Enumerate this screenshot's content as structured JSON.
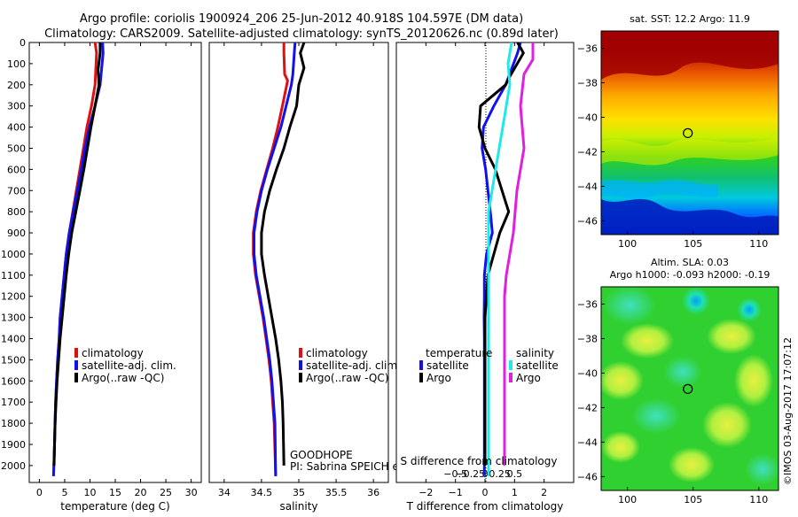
{
  "header": {
    "title": "Argo profile: coriolis 1900924_206 25-Jun-2012 40.918S 104.597E (DM data)",
    "subtitle": "Climatology: CARS2009. Satellite-adjusted climatology: synTS_20120626.nc (0.89d later)"
  },
  "right_header": {
    "sst_label": "sat. SST: 12.2 Argo: 11.9",
    "sla_line1": "Altim. SLA: 0.03",
    "sla_line2": "Argo h1000: -0.093 h2000: -0.19"
  },
  "annotations": {
    "goodhope": "GOODHOPE",
    "pi": "PI: Sabrina SPEICH et Michel ARHAN",
    "credit": "©IMOS 03-Aug-2017 17:07:12",
    "s_diff_label": "S difference from climatology"
  },
  "legend": {
    "climatology": "climatology",
    "satellite_adj": "satellite-adj. clim.",
    "argo_raw": "Argo(..raw -QC)",
    "temperature": "temperature",
    "salinity": "salinity",
    "satellite": "satellite",
    "argo": "Argo"
  },
  "colors": {
    "climatology": "#dd1111",
    "satellite": "#1111ee",
    "argo": "#000000",
    "sal_satellite": "#22e8e8",
    "sal_argo": "#e020e0"
  },
  "chart_data": [
    {
      "type": "line",
      "panel": "temperature",
      "xlabel": "temperature (deg C)",
      "ylabel": "",
      "xlim": [
        -2,
        32
      ],
      "ylim": [
        2080,
        0
      ],
      "xticks": [
        0,
        5,
        10,
        15,
        20,
        25,
        30
      ],
      "yticks": [
        0,
        100,
        200,
        300,
        400,
        500,
        600,
        700,
        800,
        900,
        1000,
        1100,
        1200,
        1300,
        1400,
        1500,
        1600,
        1700,
        1800,
        1900,
        2000
      ],
      "series": [
        {
          "name": "climatology",
          "color_key": "climatology",
          "x": [
            11.0,
            11.3,
            11.0,
            10.3,
            9.4,
            8.7,
            8.0,
            7.3,
            6.6,
            5.9,
            5.3,
            4.9,
            4.5,
            4.1,
            3.9,
            3.6,
            3.4,
            3.2,
            3.1,
            3.0,
            2.8
          ],
          "depth": [
            0,
            50,
            200,
            300,
            400,
            500,
            600,
            700,
            800,
            900,
            1000,
            1100,
            1200,
            1300,
            1400,
            1500,
            1600,
            1700,
            1800,
            1900,
            2050
          ]
        },
        {
          "name": "satellite-adj. clim.",
          "color_key": "satellite",
          "x": [
            12.5,
            12.6,
            12.0,
            11.0,
            9.9,
            9.0,
            8.3,
            7.5,
            6.7,
            5.9,
            5.3,
            4.9,
            4.5,
            4.1,
            3.9,
            3.6,
            3.4,
            3.2,
            3.1,
            3.0,
            2.8
          ],
          "depth": [
            0,
            50,
            200,
            300,
            400,
            500,
            600,
            700,
            800,
            900,
            1000,
            1100,
            1200,
            1300,
            1400,
            1500,
            1600,
            1700,
            1800,
            1900,
            2050
          ]
        },
        {
          "name": "Argo(..raw -QC)",
          "color_key": "argo",
          "x": [
            12.0,
            12.0,
            11.6,
            11.8,
            11.0,
            10.2,
            9.5,
            8.8,
            8.0,
            7.2,
            6.4,
            5.8,
            5.3,
            4.9,
            4.5,
            4.1,
            3.8,
            3.5,
            3.3,
            3.1,
            3.0,
            2.9
          ],
          "depth": [
            0,
            50,
            130,
            200,
            300,
            400,
            500,
            600,
            700,
            800,
            900,
            1000,
            1100,
            1200,
            1300,
            1400,
            1500,
            1600,
            1700,
            1800,
            1900,
            2000
          ]
        }
      ]
    },
    {
      "type": "line",
      "panel": "salinity",
      "xlabel": "salinity",
      "xlim": [
        33.8,
        36.2
      ],
      "ylim": [
        2080,
        0
      ],
      "xticks": [
        34,
        34.5,
        35,
        35.5,
        36
      ],
      "xticklabels": [
        "34",
        "34.5",
        "35",
        "35.5",
        "36"
      ],
      "series": [
        {
          "name": "climatology",
          "color_key": "climatology",
          "x": [
            34.8,
            34.8,
            34.81,
            34.85,
            34.78,
            34.72,
            34.65,
            34.57,
            34.49,
            34.43,
            34.39,
            34.39,
            34.42,
            34.47,
            34.52,
            34.56,
            34.6,
            34.63,
            34.65,
            34.67,
            34.69
          ],
          "depth": [
            0,
            50,
            150,
            180,
            300,
            400,
            500,
            600,
            700,
            800,
            900,
            1000,
            1100,
            1200,
            1300,
            1400,
            1500,
            1600,
            1700,
            1800,
            2050
          ]
        },
        {
          "name": "satellite-adj. clim.",
          "color_key": "satellite",
          "x": [
            34.95,
            34.94,
            34.92,
            34.9,
            34.83,
            34.76,
            34.67,
            34.58,
            34.5,
            34.44,
            34.4,
            34.4,
            34.43,
            34.48,
            34.53,
            34.57,
            34.61,
            34.64,
            34.66,
            34.68,
            34.69
          ],
          "depth": [
            0,
            50,
            150,
            200,
            300,
            400,
            500,
            600,
            700,
            800,
            900,
            1000,
            1100,
            1200,
            1300,
            1400,
            1500,
            1600,
            1700,
            1800,
            2050
          ]
        },
        {
          "name": "Argo(..raw -QC)",
          "color_key": "argo",
          "x": [
            35.07,
            35.02,
            35.07,
            35.0,
            34.97,
            34.88,
            34.8,
            34.7,
            34.61,
            34.54,
            34.5,
            34.5,
            34.54,
            34.59,
            34.64,
            34.69,
            34.73,
            34.76,
            34.78,
            34.79,
            34.8
          ],
          "depth": [
            0,
            50,
            120,
            200,
            300,
            400,
            500,
            600,
            700,
            800,
            900,
            1000,
            1100,
            1200,
            1300,
            1400,
            1500,
            1600,
            1700,
            1800,
            2000
          ]
        }
      ]
    },
    {
      "type": "line",
      "panel": "difference",
      "xlabel": "T difference from climatology",
      "x2label": "S difference from climatology",
      "xlim": [
        -3,
        3
      ],
      "ylim": [
        2080,
        0
      ],
      "xticks": [
        -2,
        -1,
        0,
        1,
        2
      ],
      "xticklabels": [
        "−2",
        "−1",
        "0",
        "1",
        "2"
      ],
      "x2ticks": [
        -0.5,
        -0.25,
        0,
        0.25,
        0.5
      ],
      "x2ticklabels": [
        "−0.5",
        "−0.25",
        "0",
        "0.25",
        "0.5"
      ],
      "series": [
        {
          "name": "temperature satellite",
          "color_key": "satellite",
          "x": [
            1.2,
            1.1,
            0.7,
            0.3,
            -0.05,
            -0.1,
            0.02,
            0.1,
            0.18,
            0.25,
            0.05,
            -0.02,
            -0.02,
            -0.03,
            -0.02,
            -0.02,
            -0.02,
            -0.02,
            -0.02
          ],
          "depth": [
            0,
            50,
            200,
            300,
            400,
            500,
            600,
            700,
            800,
            900,
            1000,
            1100,
            1200,
            1300,
            1400,
            1500,
            1600,
            1700,
            2050
          ]
        },
        {
          "name": "temperature Argo",
          "color_key": "argo",
          "x": [
            1.1,
            1.3,
            0.8,
            0.7,
            -0.15,
            -0.2,
            0.0,
            0.35,
            0.8,
            0.5,
            0.3,
            0.1,
            0.05,
            0.0,
            0.0,
            0.0,
            0.0,
            0.0,
            0.0
          ],
          "depth": [
            0,
            50,
            170,
            200,
            300,
            400,
            500,
            600,
            800,
            900,
            1000,
            1100,
            1200,
            1300,
            1400,
            1500,
            1600,
            1700,
            2000
          ]
        },
        {
          "name": "salinity satellite",
          "color_key": "sal_satellite",
          "x": [
            0.15,
            0.13,
            0.14,
            0.12,
            0.1,
            0.08,
            0.06,
            0.04,
            0.02,
            0.02,
            0.02,
            0.02,
            0.02,
            0.02,
            0.02,
            0.02,
            0.02,
            0.02
          ],
          "depth": [
            0,
            100,
            200,
            300,
            400,
            500,
            600,
            700,
            800,
            900,
            1000,
            1100,
            1200,
            1300,
            1400,
            1500,
            1600,
            2050
          ]
        },
        {
          "name": "salinity Argo",
          "color_key": "sal_argo",
          "x": [
            0.27,
            0.27,
            0.22,
            0.2,
            0.22,
            0.18,
            0.16,
            0.14,
            0.12,
            0.11,
            0.11,
            0.11,
            0.11,
            0.11,
            0.11,
            0.11
          ],
          "depth": [
            0,
            80,
            150,
            300,
            500,
            700,
            900,
            1000,
            1100,
            1200,
            1300,
            1500,
            1600,
            1700,
            1800,
            2000
          ]
        }
      ]
    },
    {
      "type": "heatmap",
      "panel": "sst_map",
      "title": "sat. SST: 12.2 Argo: 11.9",
      "xlim": [
        98,
        111.5
      ],
      "ylim": [
        -46.8,
        -35
      ],
      "xticks": [
        100,
        105,
        110
      ],
      "yticks": [
        -36,
        -38,
        -40,
        -42,
        -44,
        -46
      ],
      "marker": {
        "lon": 104.597,
        "lat": -40.918
      }
    },
    {
      "type": "heatmap",
      "panel": "sla_map",
      "title": "Altim. SLA: 0.03",
      "xlim": [
        98,
        111.5
      ],
      "ylim": [
        -46.8,
        -35
      ],
      "xticks": [
        100,
        105,
        110
      ],
      "yticks": [
        -36,
        -38,
        -40,
        -42,
        -44,
        -46
      ],
      "marker": {
        "lon": 104.597,
        "lat": -40.918
      }
    }
  ]
}
